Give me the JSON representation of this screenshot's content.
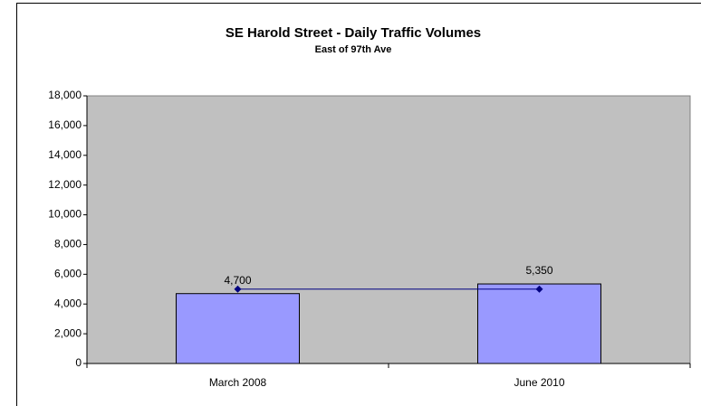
{
  "chart_data": {
    "type": "bar",
    "title": "SE Harold Street - Daily Traffic Volumes",
    "subtitle": "East of 97th Ave",
    "categories": [
      "March 2008",
      "June 2010"
    ],
    "series": [
      {
        "type": "bar",
        "color": "#9999ff",
        "values": [
          4700,
          5350
        ],
        "value_labels": [
          "4,700",
          "5,350"
        ]
      },
      {
        "type": "line",
        "color": "#000080",
        "values": [
          5000,
          5000
        ]
      }
    ],
    "ylim": [
      0,
      18000
    ],
    "yticks": [
      0,
      {
        "value": 2000,
        "label": "2,000"
      },
      {
        "value": 4000,
        "label": "4,000"
      },
      {
        "value": 6000,
        "label": "6,000"
      },
      {
        "value": 8000,
        "label": "8,000"
      },
      {
        "value": 10000,
        "label": "10,000"
      },
      {
        "value": 12000,
        "label": "12,000"
      },
      {
        "value": 14000,
        "label": "14,000"
      },
      {
        "value": 16000,
        "label": "16,000"
      },
      {
        "value": 18000,
        "label": "18,000"
      }
    ],
    "plot_background": "#c0c0c0"
  }
}
